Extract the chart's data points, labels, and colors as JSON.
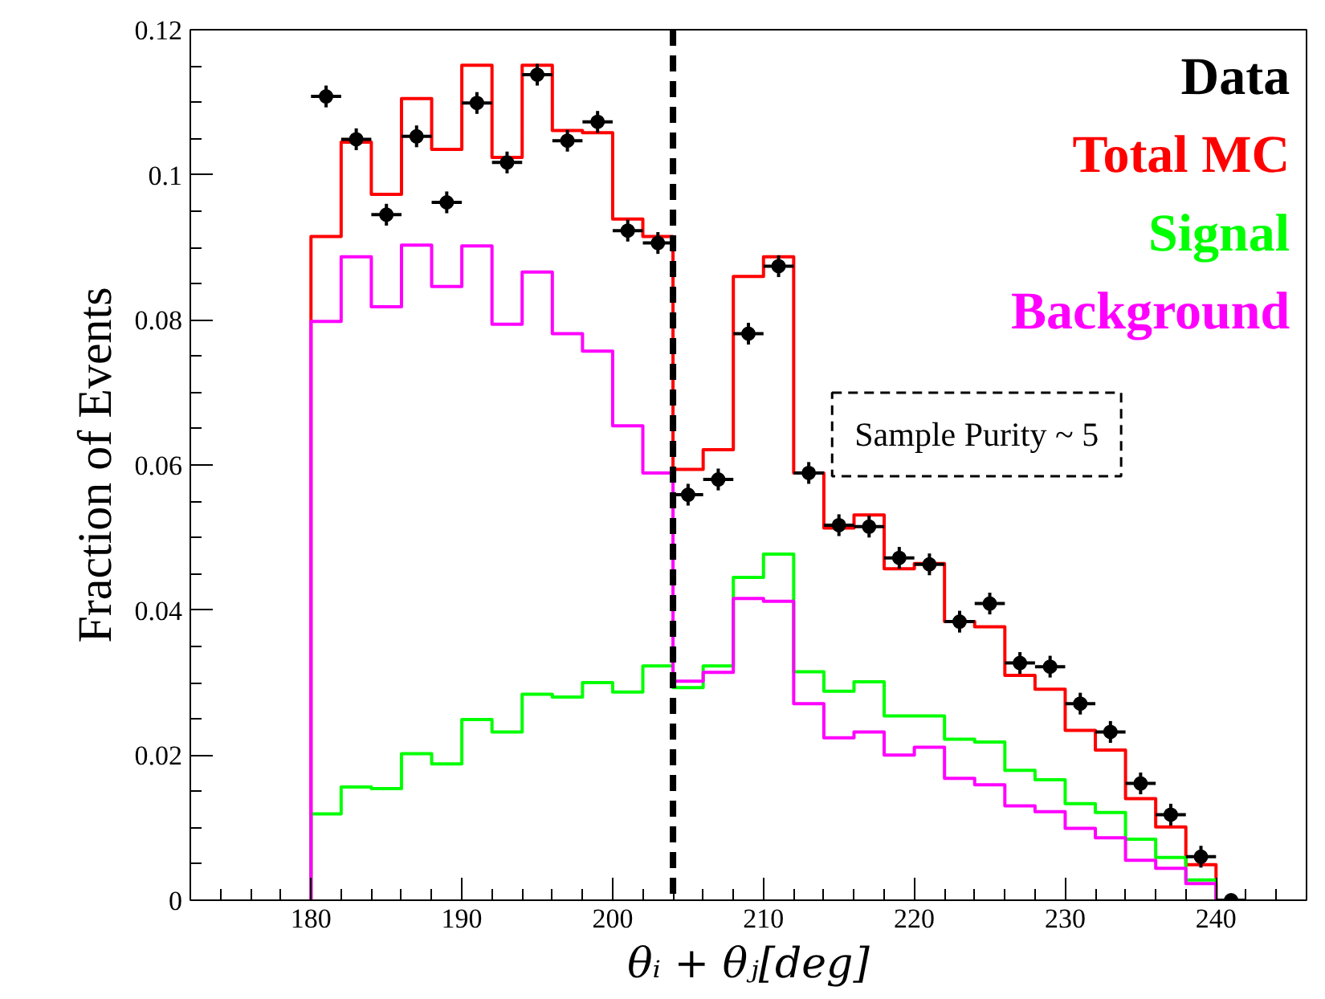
{
  "chart_data": {
    "type": "histogram",
    "xlabel": "θᵢ + θⱼ[deg]",
    "ylabel": "Fraction of Events",
    "bins": [
      180,
      182,
      184,
      186,
      188,
      190,
      192,
      194,
      196,
      198,
      200,
      202,
      204,
      206,
      208,
      210,
      212,
      214,
      216,
      218,
      220,
      222,
      224,
      226,
      228,
      230,
      232,
      234,
      236,
      238,
      240,
      242
    ],
    "series": [
      {
        "name": "Data",
        "type": "scatter",
        "color": "#000000",
        "marker": "circle",
        "x": [
          181,
          183,
          185,
          187,
          189,
          191,
          193,
          195,
          197,
          199,
          201,
          203,
          205,
          207,
          209,
          211,
          213,
          215,
          217,
          219,
          221,
          223,
          225,
          227,
          229,
          231,
          233,
          235,
          237,
          239,
          241
        ],
        "values": [
          0.1108,
          0.1049,
          0.0945,
          0.1053,
          0.0962,
          0.1099,
          0.1017,
          0.1138,
          0.1047,
          0.1073,
          0.0923,
          0.0906,
          0.0559,
          0.058,
          0.0781,
          0.0874,
          0.0589,
          0.0517,
          0.0515,
          0.0472,
          0.0463,
          0.0384,
          0.0409,
          0.0327,
          0.0322,
          0.0271,
          0.0232,
          0.0161,
          0.0118,
          0.006,
          0.0
        ],
        "errors": [
          0.0015,
          0.0015,
          0.0015,
          0.0015,
          0.0015,
          0.0015,
          0.0015,
          0.0015,
          0.0015,
          0.0015,
          0.0015,
          0.0015,
          0.0015,
          0.0015,
          0.0015,
          0.0015,
          0.0015,
          0.0015,
          0.0015,
          0.0015,
          0.0015,
          0.0015,
          0.0015,
          0.0015,
          0.0015,
          0.0015,
          0.0015,
          0.0015,
          0.0015,
          0.0015,
          null
        ],
        "xerrors": [
          1,
          1,
          1,
          1,
          1,
          1,
          1,
          1,
          1,
          1,
          1,
          1,
          1,
          1,
          1,
          1,
          1,
          1,
          1,
          1,
          1,
          1,
          1,
          1,
          1,
          1,
          1,
          1,
          1,
          1,
          1
        ]
      },
      {
        "name": "Total MC",
        "color": "#ff0000",
        "values": [
          0.0915,
          0.1045,
          0.0973,
          0.1105,
          0.1035,
          0.1151,
          0.1024,
          0.1151,
          0.1061,
          0.1058,
          0.0939,
          0.0915,
          0.0594,
          0.0621,
          0.086,
          0.0887,
          0.0589,
          0.0513,
          0.0531,
          0.0457,
          0.0464,
          0.0384,
          0.0377,
          0.031,
          0.0291,
          0.0234,
          0.0207,
          0.014,
          0.0101,
          0.0049,
          0.0
        ]
      },
      {
        "name": "Signal",
        "color": "#00ff00",
        "values": [
          0.0119,
          0.0156,
          0.0154,
          0.0202,
          0.0188,
          0.0249,
          0.0232,
          0.0284,
          0.028,
          0.03,
          0.0287,
          0.0323,
          0.0293,
          0.0323,
          0.0445,
          0.0477,
          0.0315,
          0.0288,
          0.0301,
          0.0254,
          0.0254,
          0.0222,
          0.0218,
          0.0179,
          0.0166,
          0.0133,
          0.0121,
          0.0084,
          0.0059,
          0.0028,
          0.0
        ]
      },
      {
        "name": "Background",
        "color": "#ff00ff",
        "values": [
          0.0798,
          0.0887,
          0.0818,
          0.0903,
          0.0846,
          0.0902,
          0.0794,
          0.0866,
          0.0781,
          0.0757,
          0.0654,
          0.0589,
          0.0302,
          0.0314,
          0.0416,
          0.0412,
          0.0271,
          0.0224,
          0.0232,
          0.02,
          0.0211,
          0.0168,
          0.0159,
          0.013,
          0.0122,
          0.0099,
          0.0086,
          0.0055,
          0.0044,
          0.0023,
          0.0
        ]
      }
    ],
    "xlim": [
      172,
      246
    ],
    "xticks": [
      180,
      190,
      200,
      210,
      220,
      230,
      240
    ],
    "ylim": [
      0,
      0.12
    ],
    "yticks": [
      0,
      0.02,
      0.04,
      0.06,
      0.08,
      0.1,
      0.12
    ],
    "ref_lines": [
      {
        "axis": "x",
        "value": 204,
        "color": "#000000",
        "line_style": "dashed"
      }
    ],
    "annotations": [
      "Sample Purity ~ 5"
    ],
    "legend": "top right",
    "grid": false
  }
}
